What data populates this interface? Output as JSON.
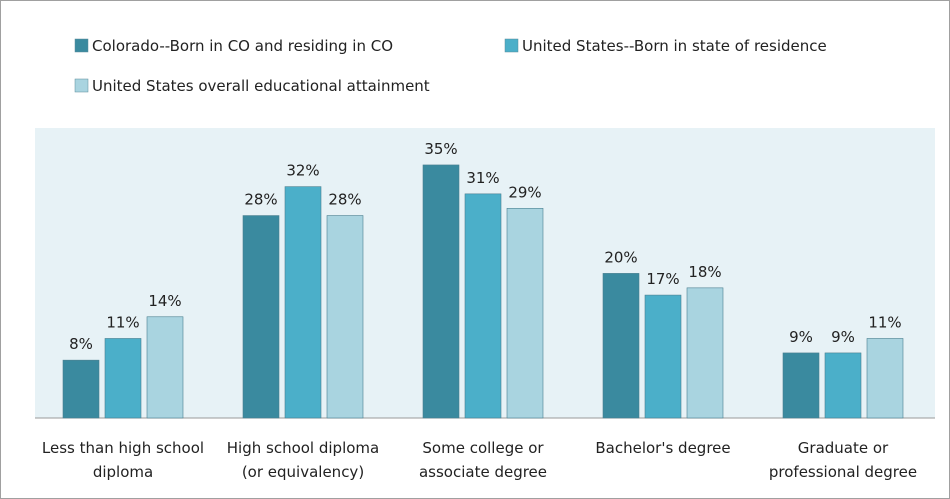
{
  "chart_data": {
    "type": "bar",
    "categories": [
      "Less than high school diploma",
      "High school diploma (or equivalency)",
      "Some college or associate degree",
      "Bachelor's degree",
      "Graduate or professional degree"
    ],
    "series": [
      {
        "name": "Colorado--Born in CO and residing in CO",
        "color": "#3a8a9f",
        "values": [
          8,
          28,
          35,
          20,
          9
        ],
        "value_labels": [
          "8%",
          "28%",
          "35%",
          "20%",
          "9%"
        ]
      },
      {
        "name": "United States--Born in state of residence",
        "color": "#4bafc9",
        "values": [
          11,
          32,
          31,
          17,
          9
        ],
        "value_labels": [
          "11%",
          "32%",
          "31%",
          "17%",
          "9%"
        ]
      },
      {
        "name": "United States overall educational attainment",
        "color": "#a9d4e0",
        "values": [
          14,
          28,
          29,
          18,
          11
        ],
        "value_labels": [
          "14%",
          "28%",
          "29%",
          "18%",
          "11%"
        ]
      }
    ]
  }
}
